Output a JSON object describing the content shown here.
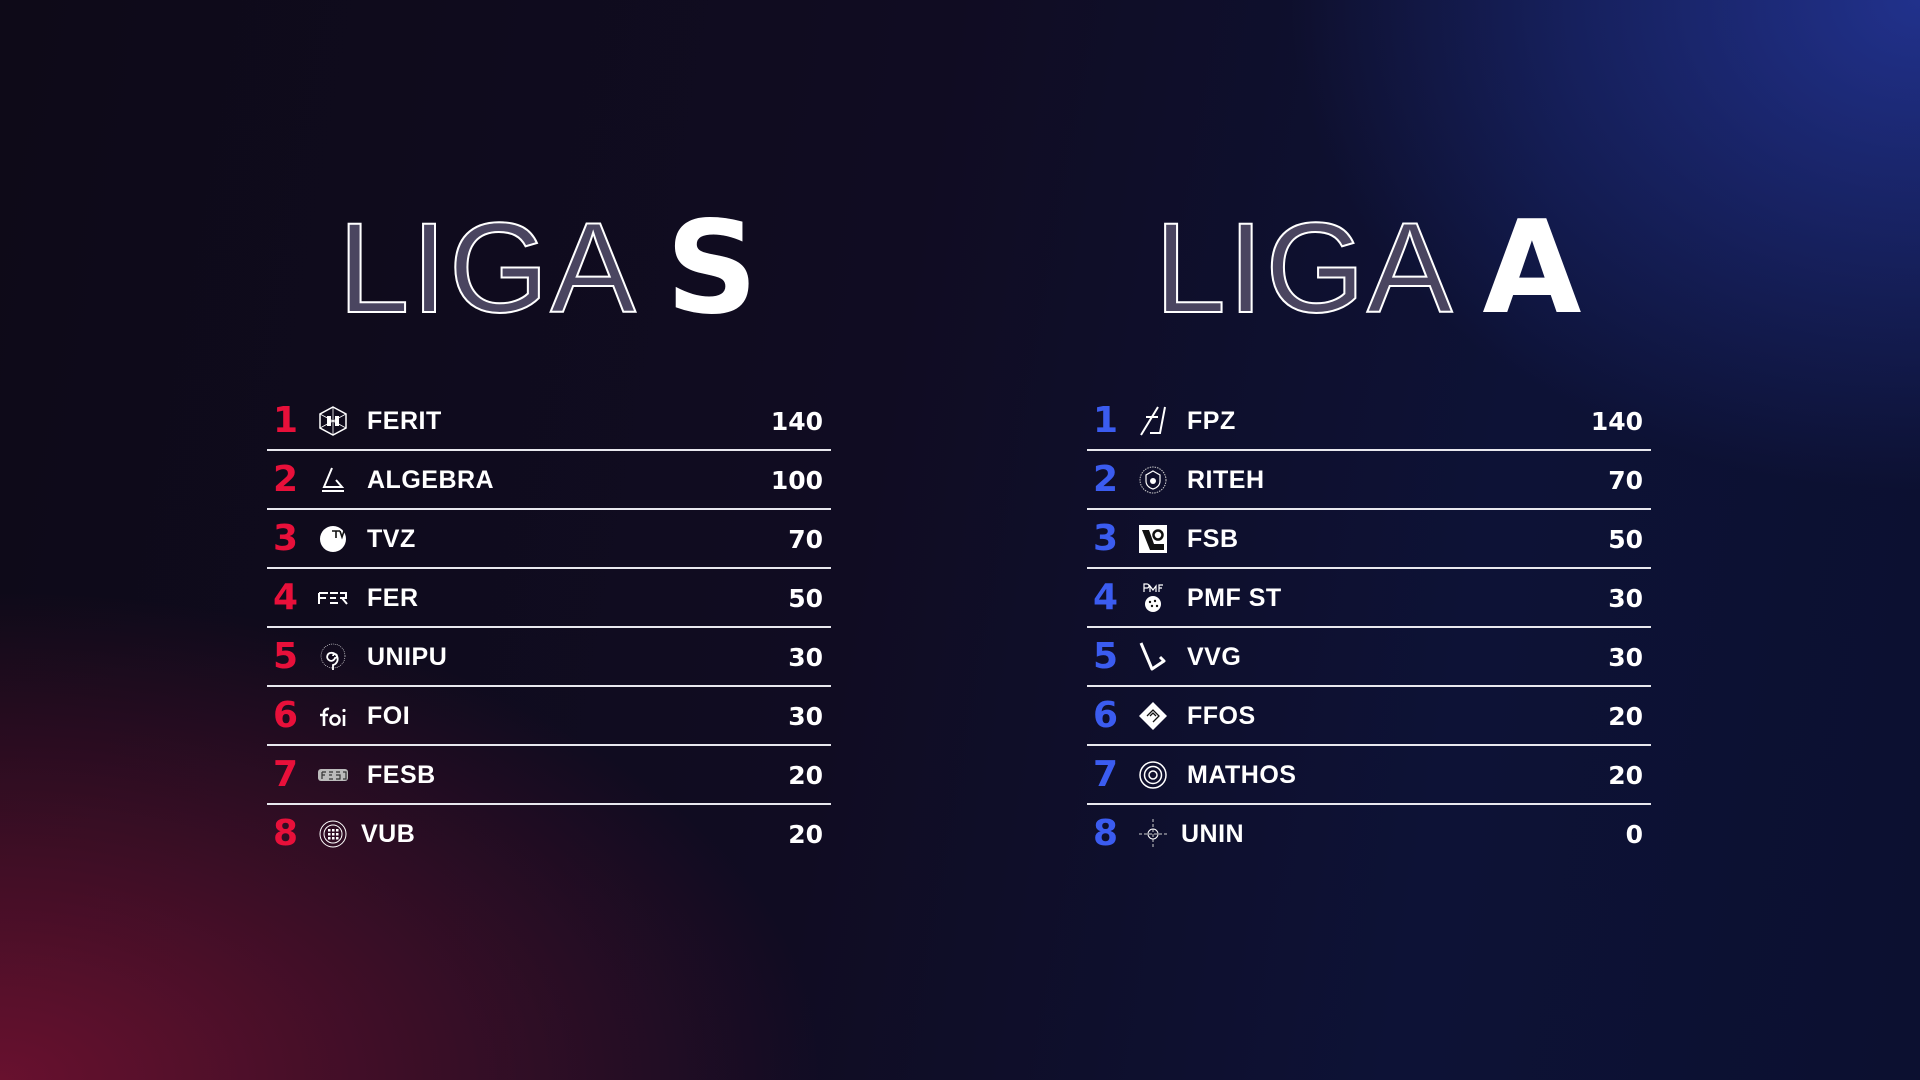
{
  "colors": {
    "liga_s_accent": "#e8103a",
    "liga_a_accent": "#3b5cf0"
  },
  "liga_s": {
    "title_outline": "LIGA",
    "title_solid": "S",
    "rows": [
      {
        "rank": "1",
        "logo": "ferit-hexagon-icon",
        "name": "FERIT",
        "score": "140"
      },
      {
        "rank": "2",
        "logo": "algebra-triangle-icon",
        "name": "ALGEBRA",
        "score": "100"
      },
      {
        "rank": "3",
        "logo": "tvz-circle-icon",
        "name": "TVZ",
        "score": "70"
      },
      {
        "rank": "4",
        "logo": "fer-wordmark-icon",
        "name": "FER",
        "score": "50"
      },
      {
        "rank": "5",
        "logo": "unipu-spiral-icon",
        "name": "UNIPU",
        "score": "30"
      },
      {
        "rank": "6",
        "logo": "foi-wordmark-icon",
        "name": "FOI",
        "score": "30"
      },
      {
        "rank": "7",
        "logo": "fesb-wordmark-icon",
        "name": "FESB",
        "score": "20"
      },
      {
        "rank": "8",
        "logo": "vub-seal-icon",
        "name": "VUB",
        "score": "20"
      }
    ]
  },
  "liga_a": {
    "title_outline": "LIGA",
    "title_solid": "A",
    "rows": [
      {
        "rank": "1",
        "logo": "fpz-monogram-icon",
        "name": "FPZ",
        "score": "140"
      },
      {
        "rank": "2",
        "logo": "riteh-seal-icon",
        "name": "RITEH",
        "score": "70"
      },
      {
        "rank": "3",
        "logo": "fsb-square-icon",
        "name": "FSB",
        "score": "50"
      },
      {
        "rank": "4",
        "logo": "pmf-st-icon",
        "name": "PMF ST",
        "score": "30"
      },
      {
        "rank": "5",
        "logo": "vvg-check-icon",
        "name": "VVG",
        "score": "30"
      },
      {
        "rank": "6",
        "logo": "ffos-diamond-icon",
        "name": "FFOS",
        "score": "20"
      },
      {
        "rank": "7",
        "logo": "mathos-rings-icon",
        "name": "MATHOS",
        "score": "20"
      },
      {
        "rank": "8",
        "logo": "unin-crosshair-icon",
        "name": "UNIN",
        "score": "0"
      }
    ]
  }
}
